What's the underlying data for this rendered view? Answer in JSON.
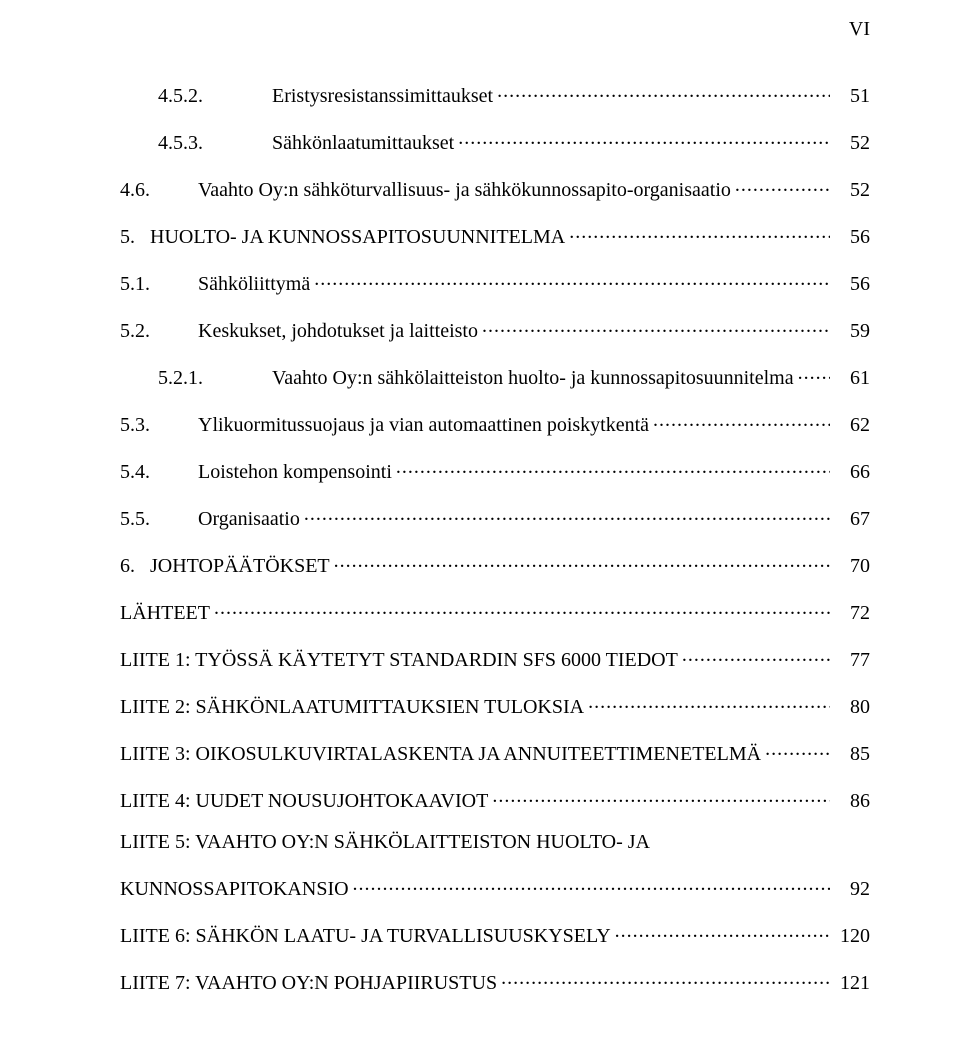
{
  "page_number_label": "VI",
  "typography": {
    "font_family": "Times New Roman",
    "base_font_size_pt": 15,
    "text_color": "#000000",
    "background_color": "#ffffff",
    "leader_char": "."
  },
  "toc": [
    {
      "level": 3,
      "number": "4.5.2.",
      "title": "Eristysresistanssimittaukset",
      "page": "51"
    },
    {
      "level": 3,
      "number": "4.5.3.",
      "title": "Sähkönlaatumittaukset",
      "page": "52"
    },
    {
      "level": 2,
      "number": "4.6.",
      "title": "Vaahto Oy:n sähköturvallisuus- ja sähkökunnossapito-organisaatio",
      "page": "52"
    },
    {
      "level": 1,
      "number": "5.",
      "title": "HUOLTO- JA KUNNOSSAPITOSUUNNITELMA",
      "page": "56"
    },
    {
      "level": 2,
      "number": "5.1.",
      "title": "Sähköliittymä",
      "page": "56"
    },
    {
      "level": 2,
      "number": "5.2.",
      "title": "Keskukset, johdotukset ja laitteisto",
      "page": "59"
    },
    {
      "level": 3,
      "number": "5.2.1.",
      "title": "Vaahto Oy:n sähkölaitteiston huolto- ja kunnossapitosuunnitelma",
      "page": "61"
    },
    {
      "level": 2,
      "number": "5.3.",
      "title": "Ylikuormitussuojaus ja vian automaattinen poiskytkentä",
      "page": "62"
    },
    {
      "level": 2,
      "number": "5.4.",
      "title": "Loistehon kompensointi",
      "page": "66"
    },
    {
      "level": 2,
      "number": "5.5.",
      "title": "Organisaatio",
      "page": "67"
    },
    {
      "level": 1,
      "number": "6.",
      "title": "JOHTOPÄÄTÖKSET",
      "page": "70"
    },
    {
      "level": 1,
      "number": "",
      "title": "LÄHTEET",
      "page": "72"
    },
    {
      "level": 1,
      "number": "",
      "title": "LIITE 1: TYÖSSÄ KÄYTETYT STANDARDIN SFS 6000 TIEDOT",
      "page": "77"
    },
    {
      "level": 1,
      "number": "",
      "title": "LIITE 2: SÄHKÖNLAATUMITTAUKSIEN TULOKSIA",
      "page": "80"
    },
    {
      "level": 1,
      "number": "",
      "title": "LIITE 3: OIKOSULKUVIRTALASKENTA JA ANNUITEETTIMENETELMÄ",
      "page": "85"
    },
    {
      "level": 1,
      "number": "",
      "title": "LIITE 4: UUDET NOUSUJOHTOKAAVIOT",
      "page": "86"
    },
    {
      "level": 1,
      "number": "",
      "title_line1": "LIITE 5: VAAHTO OY:N SÄHKÖLAITTEISTON HUOLTO- JA",
      "title_line2": "KUNNOSSAPITOKANSIO",
      "page": "92",
      "multiline": true
    },
    {
      "level": 1,
      "number": "",
      "title": "LIITE 6: SÄHKÖN LAATU- JA TURVALLISUUSKYSELY",
      "page": "120"
    },
    {
      "level": 1,
      "number": "",
      "title": "LIITE 7: VAAHTO OY:N POHJAPIIRUSTUS",
      "page": "121"
    }
  ]
}
